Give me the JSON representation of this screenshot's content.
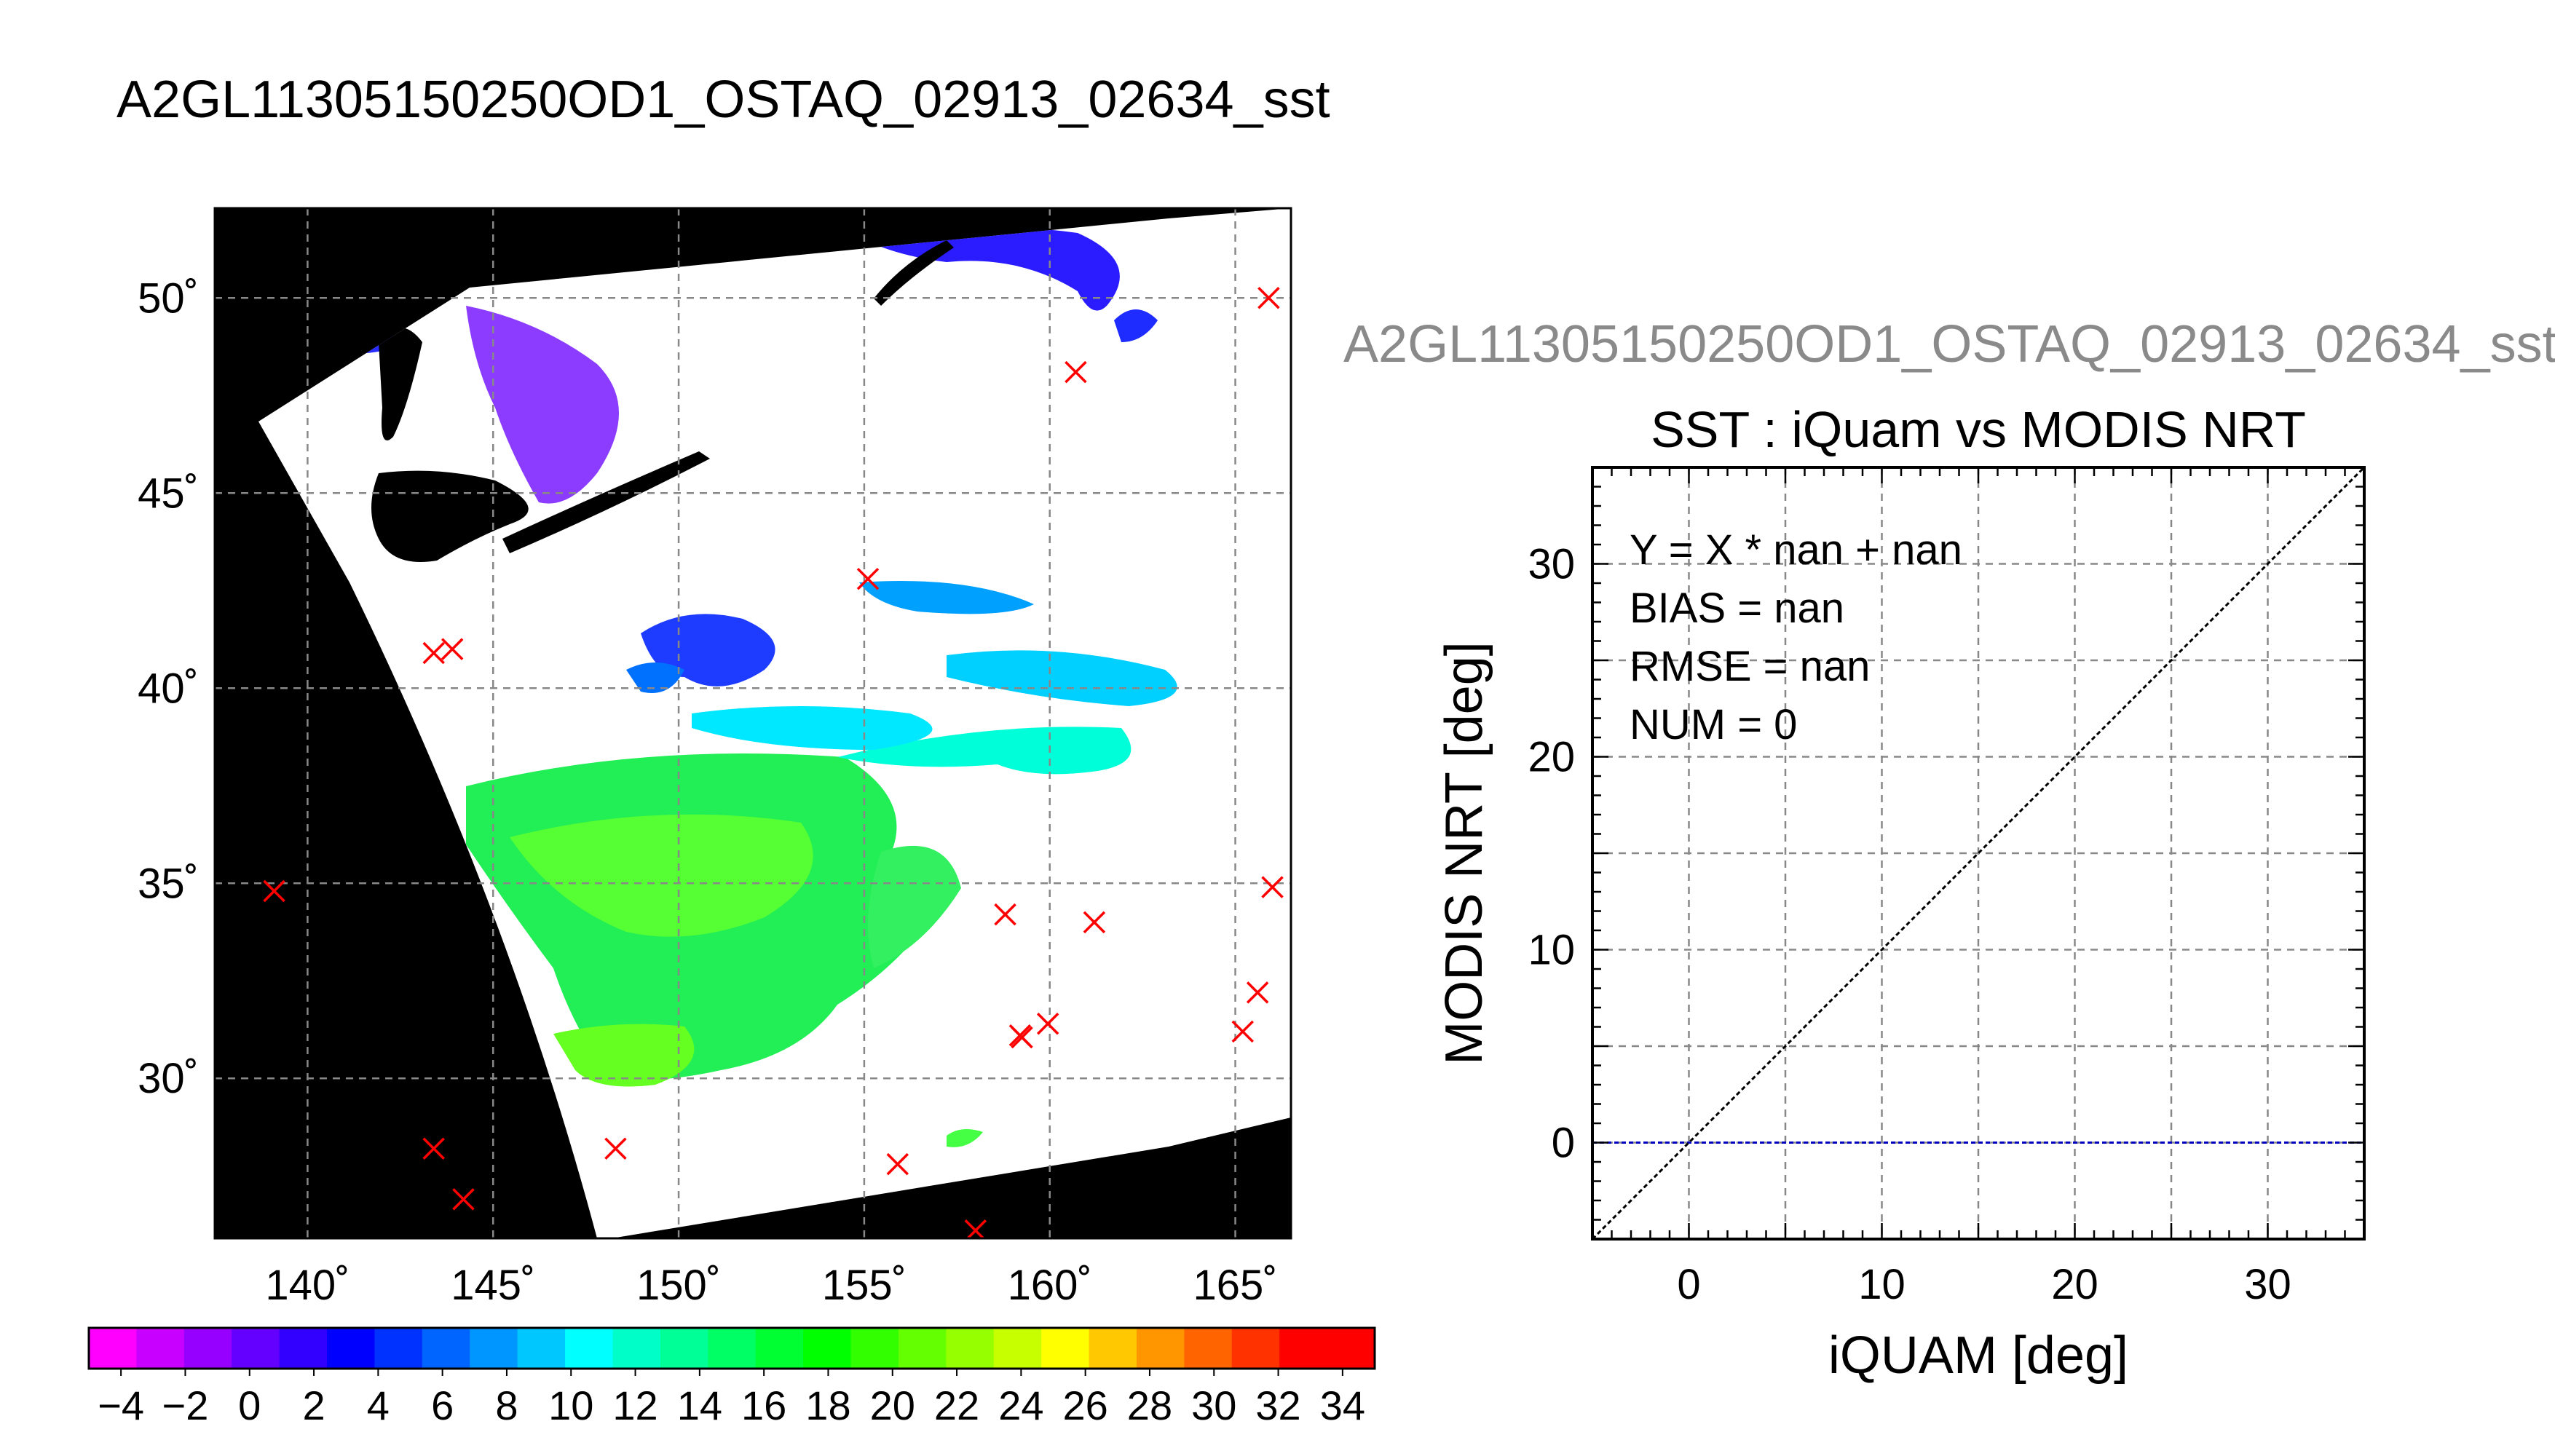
{
  "main_title": "A2GL11305150250OD1_OSTAQ_02913_02634_sst",
  "subtitle": "A2GL11305150250OD1_OSTAQ_02913_02634_sst",
  "chart_data": [
    {
      "type": "heatmap",
      "title": "",
      "xlabel": "",
      "ylabel": "",
      "xlim": [
        137.5,
        166.5
      ],
      "ylim": [
        25.9,
        52.3
      ],
      "xticks": [
        140,
        145,
        150,
        155,
        160,
        165
      ],
      "yticks": [
        30,
        35,
        40,
        45,
        50
      ],
      "tick_suffix": "˚",
      "grid": true,
      "background_color": "#000000",
      "swath_color": "#ffffff",
      "marker_color": "#ff0000",
      "marker_symbol": "x",
      "matchups": [
        {
          "lon": 139.1,
          "lat": 34.8
        },
        {
          "lon": 143.4,
          "lat": 40.9
        },
        {
          "lon": 143.9,
          "lat": 41.0
        },
        {
          "lon": 143.4,
          "lat": 28.2
        },
        {
          "lon": 144.2,
          "lat": 26.9
        },
        {
          "lon": 148.3,
          "lat": 28.2
        },
        {
          "lon": 155.1,
          "lat": 42.8
        },
        {
          "lon": 155.9,
          "lat": 27.8
        },
        {
          "lon": 158.0,
          "lat": 26.1
        },
        {
          "lon": 158.8,
          "lat": 34.2
        },
        {
          "lon": 159.2,
          "lat": 31.1
        },
        {
          "lon": 159.25,
          "lat": 31.05
        },
        {
          "lon": 159.95,
          "lat": 31.4
        },
        {
          "lon": 161.2,
          "lat": 34.0
        },
        {
          "lon": 160.7,
          "lat": 48.1
        },
        {
          "lon": 165.2,
          "lat": 31.2
        },
        {
          "lon": 165.6,
          "lat": 32.2
        },
        {
          "lon": 166.0,
          "lat": 34.9
        },
        {
          "lon": 165.9,
          "lat": 50.0
        }
      ],
      "colorbar": {
        "min": -5,
        "max": 35,
        "ticks": [
          "−4",
          "−2",
          "0",
          "2",
          "4",
          "6",
          "8",
          "10",
          "12",
          "14",
          "16",
          "18",
          "20",
          "22",
          "24",
          "26",
          "28",
          "30",
          "32",
          "34"
        ],
        "colors": [
          "#ff00ff",
          "#c800ff",
          "#9600ff",
          "#6400ff",
          "#3200ff",
          "#0000ff",
          "#0032ff",
          "#0064ff",
          "#0096ff",
          "#00c8ff",
          "#00ffff",
          "#00ffc8",
          "#00ff96",
          "#00ff64",
          "#00ff32",
          "#00ff00",
          "#32ff00",
          "#64ff00",
          "#96ff00",
          "#c8ff00",
          "#ffff00",
          "#ffc800",
          "#ff9600",
          "#ff6400",
          "#ff3200",
          "#ff0000",
          "#ff0000"
        ]
      }
    },
    {
      "type": "scatter",
      "title": "SST : iQuam vs MODIS NRT",
      "xlabel": "iQUAM [deg]",
      "ylabel": "MODIS NRT [deg]",
      "xlim": [
        -5,
        35
      ],
      "ylim": [
        -5,
        35
      ],
      "xticks": [
        0,
        10,
        20,
        30
      ],
      "yticks": [
        0,
        10,
        20,
        30
      ],
      "grid": true,
      "points": [],
      "reference_line": {
        "slope": 1,
        "intercept": 0,
        "color": "#000000"
      },
      "zero_line": {
        "y": 0,
        "color": "#0000c0"
      },
      "stats": [
        "Y = X * nan + nan",
        "BIAS = nan",
        "RMSE = nan",
        "NUM = 0"
      ]
    }
  ]
}
